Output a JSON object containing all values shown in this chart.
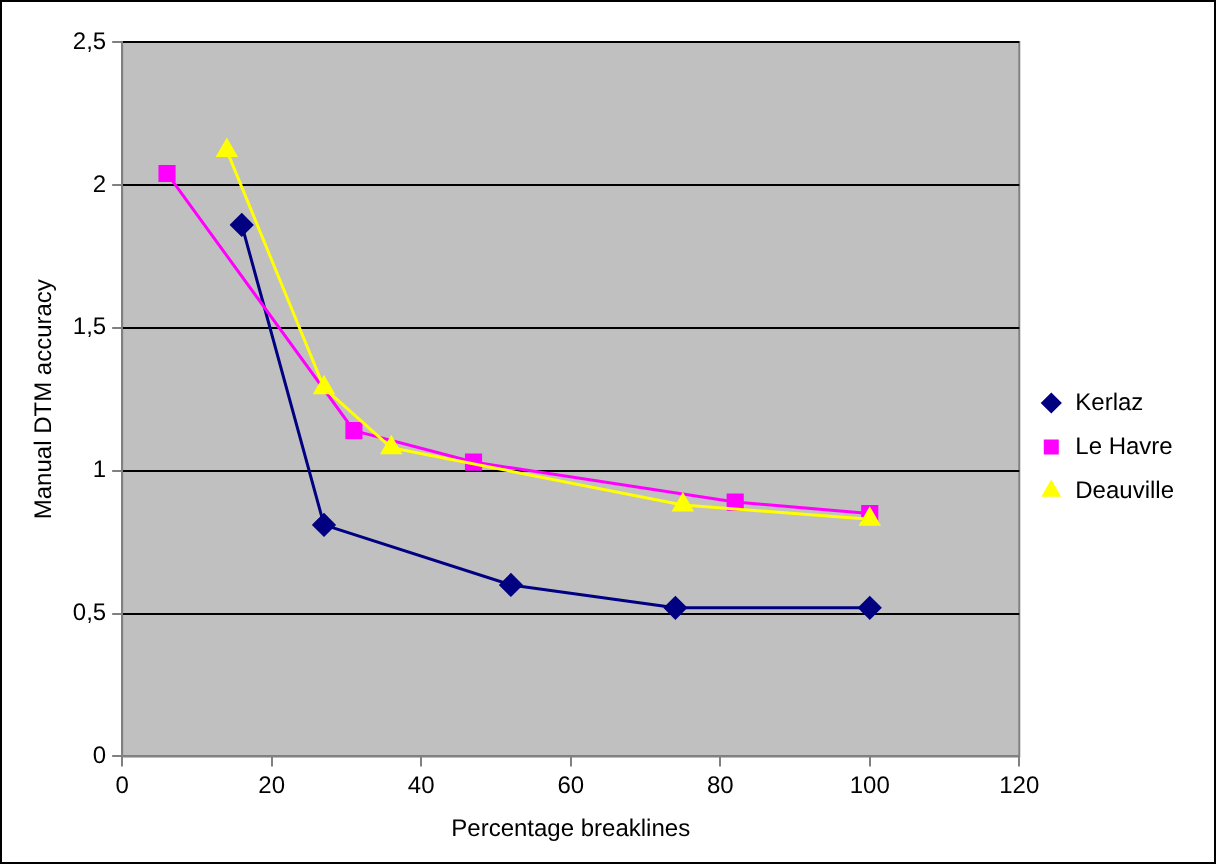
{
  "chart_data": {
    "type": "line",
    "xlabel": "Percentage breaklines",
    "ylabel": "Manual DTM accuracy",
    "xlim": [
      0,
      120
    ],
    "xticks": [
      0,
      20,
      40,
      60,
      80,
      100,
      120
    ],
    "ylim": [
      0,
      2.5
    ],
    "yticks": [
      0,
      {
        "value": 0.5,
        "label": "0,5"
      },
      1,
      {
        "value": 1.5,
        "label": "1,5"
      },
      2,
      {
        "value": 2.5,
        "label": "2,5"
      }
    ],
    "grid": "y",
    "legend": "right",
    "line_style": "solid",
    "series": [
      {
        "name": "Kerlaz",
        "color": "#000080",
        "marker": "diamond",
        "x": [
          16,
          27,
          52,
          74,
          100
        ],
        "values": [
          1.86,
          0.81,
          0.6,
          0.52,
          0.52
        ]
      },
      {
        "name": "Le Havre",
        "color": "#ff00ff",
        "marker": "square",
        "x": [
          6,
          31,
          47,
          82,
          100
        ],
        "values": [
          2.04,
          1.14,
          1.03,
          0.89,
          0.85
        ]
      },
      {
        "name": "Deauville",
        "color": "#ffff00",
        "marker": "triangle",
        "x": [
          14,
          27,
          36,
          75,
          100
        ],
        "values": [
          2.12,
          1.29,
          1.08,
          0.88,
          0.83
        ]
      }
    ]
  }
}
